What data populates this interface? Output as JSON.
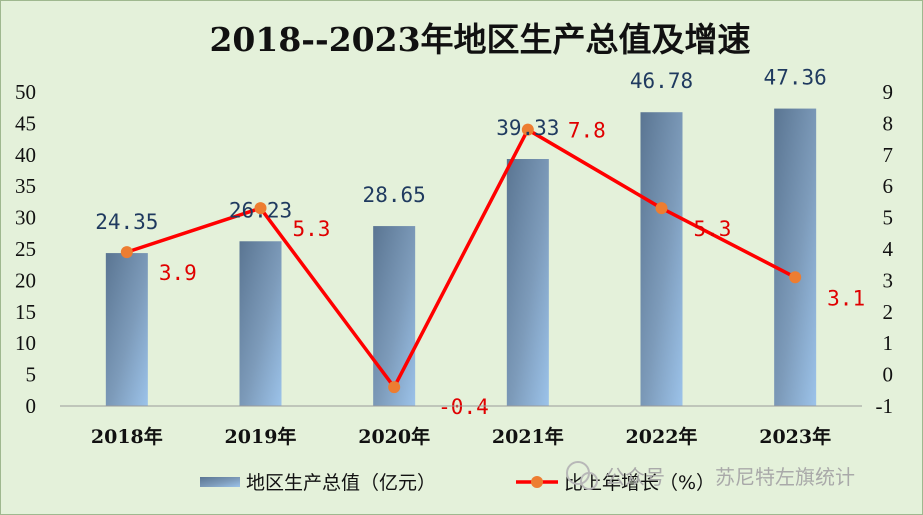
{
  "chart_data": {
    "type": "bar",
    "title": "2018--2023年地区生产总值及增速",
    "categories": [
      "2018年",
      "2019年",
      "2020年",
      "2021年",
      "2022年",
      "2023年"
    ],
    "series": [
      {
        "name": "地区生产总值（亿元）",
        "type": "bar",
        "axis": "left",
        "values": [
          24.35,
          26.23,
          28.65,
          39.33,
          46.78,
          47.36
        ],
        "labels": [
          "24.35",
          "26.23",
          "28.65",
          "39.33",
          "46.78",
          "47.36"
        ],
        "color": "#5f7f9f"
      },
      {
        "name": "比上年增长（%）",
        "type": "line",
        "axis": "right",
        "values": [
          3.9,
          5.3,
          -0.4,
          7.8,
          5.3,
          3.1
        ],
        "labels": [
          "3.9",
          "5.3",
          "-0.4",
          "7.8",
          "5.3",
          "3.1"
        ],
        "color": "#ff0000",
        "marker_color": "#ed7d31"
      }
    ],
    "y_left": {
      "min": 0,
      "max": 50,
      "ticks": [
        "0",
        "5",
        "10",
        "15",
        "20",
        "25",
        "30",
        "35",
        "40",
        "45",
        "50"
      ]
    },
    "y_right": {
      "min": -1,
      "max": 9,
      "ticks": [
        "-1",
        "0",
        "1",
        "2",
        "3",
        "4",
        "5",
        "6",
        "7",
        "8",
        "9"
      ]
    },
    "grid": false,
    "legend_position": "bottom"
  },
  "watermark": {
    "prefix": "公众号",
    "name": "苏尼特左旗统计",
    "icon": "wechat-icon"
  }
}
